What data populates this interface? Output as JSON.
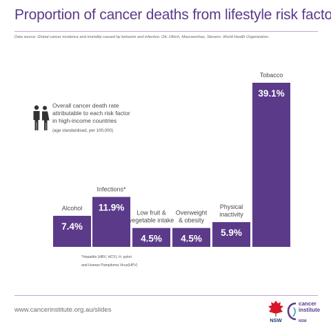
{
  "title": "Proportion of cancer deaths from lifestyle risk factors",
  "source": "Data source: Global cancer incidence and mortality caused by behavior and infection. Ott, Ullrich, Mascarenhas, Stevens. World Health Organization.",
  "legend": {
    "icon": "people-icon",
    "lines": [
      "Overall cancer death rate",
      "attributable to each risk factor",
      "in high-income countries"
    ],
    "sub": "(age standardised, per 100,000)"
  },
  "footnote": {
    "lines": [
      "*Hepatitis (HBV, HCV), H. pylori",
      "and Human Pampiloma Virus(HPV)"
    ]
  },
  "footer": {
    "url": "www.cancerinstitute.org.au/slides",
    "logo_left": "NSW",
    "logo_right_lines": [
      "cancer",
      "institute"
    ],
    "logo_right_sub": "NSW"
  },
  "colors": {
    "bar": "#5b3a8a",
    "bar_text": "#ffffff",
    "label": "#4a4a4a",
    "title": "#5b3a8a"
  },
  "chart_data": {
    "type": "bar",
    "categories": [
      [
        "Alcohol"
      ],
      [
        "Infections*"
      ],
      [
        "Low fruit &",
        "vegetable intake"
      ],
      [
        "Overweight",
        "& obesity"
      ],
      [
        "Physical",
        "inactivity"
      ],
      [
        "Tobacco"
      ]
    ],
    "values": [
      7.4,
      11.9,
      4.5,
      4.5,
      5.9,
      39.1
    ],
    "value_labels": [
      "7.4%",
      "11.9%",
      "4.5%",
      "4.5%",
      "5.9%",
      "39.1%"
    ],
    "unit": "%",
    "ylim": [
      0,
      39.1
    ],
    "grid": false,
    "legend_position": "left"
  }
}
